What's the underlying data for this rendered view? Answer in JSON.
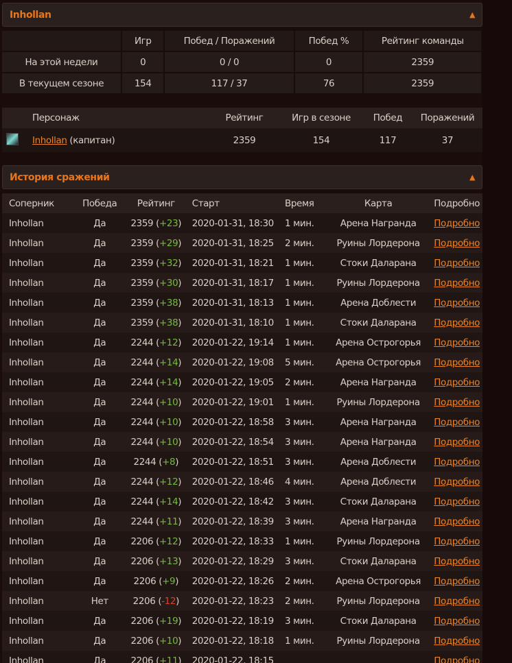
{
  "team": {
    "title": "Inhollan",
    "collapse_icon": "chevron-up-icon"
  },
  "stats": {
    "headers": [
      "",
      "Игр",
      "Побед / Поражений",
      "Побед %",
      "Рейтинг команды"
    ],
    "rows": [
      [
        "На этой недели",
        "0",
        "0 / 0",
        "0",
        "2359"
      ],
      [
        "В текущем сезоне",
        "154",
        "117 / 37",
        "76",
        "2359"
      ]
    ]
  },
  "roster": {
    "headers": [
      "Персонаж",
      "Рейтинг",
      "Игр в сезоне",
      "Побед",
      "Поражений"
    ],
    "rows": [
      {
        "icon": "class-icon",
        "name": "Inhollan",
        "role": "(капитан)",
        "rating": "2359",
        "games": "154",
        "wins": "117",
        "losses": "37"
      }
    ]
  },
  "history": {
    "title": "История сражений",
    "collapse_icon": "chevron-up-icon",
    "headers": [
      "Соперник",
      "Победа",
      "Рейтинг",
      "Старт",
      "Время",
      "Карта",
      "Подробно"
    ],
    "colors": {
      "positive": "#6fbf3a",
      "negative": "#d9432b",
      "link": "#e8832a",
      "accent": "#e8751a"
    },
    "rows": [
      [
        "Inhollan",
        "Да",
        "2359",
        "+23",
        "2020-01-31, 18:30",
        "1 мин.",
        "Арена Награнда",
        "Подробно"
      ],
      [
        "Inhollan",
        "Да",
        "2359",
        "+29",
        "2020-01-31, 18:25",
        "2 мин.",
        "Руины Лордерона",
        "Подробно"
      ],
      [
        "Inhollan",
        "Да",
        "2359",
        "+32",
        "2020-01-31, 18:21",
        "1 мин.",
        "Стоки Даларана",
        "Подробно"
      ],
      [
        "Inhollan",
        "Да",
        "2359",
        "+30",
        "2020-01-31, 18:17",
        "1 мин.",
        "Руины Лордерона",
        "Подробно"
      ],
      [
        "Inhollan",
        "Да",
        "2359",
        "+38",
        "2020-01-31, 18:13",
        "1 мин.",
        "Арена Доблести",
        "Подробно"
      ],
      [
        "Inhollan",
        "Да",
        "2359",
        "+38",
        "2020-01-31, 18:10",
        "1 мин.",
        "Стоки Даларана",
        "Подробно"
      ],
      [
        "Inhollan",
        "Да",
        "2244",
        "+12",
        "2020-01-22, 19:14",
        "1 мин.",
        "Арена Острогорья",
        "Подробно"
      ],
      [
        "Inhollan",
        "Да",
        "2244",
        "+14",
        "2020-01-22, 19:08",
        "5 мин.",
        "Арена Острогорья",
        "Подробно"
      ],
      [
        "Inhollan",
        "Да",
        "2244",
        "+14",
        "2020-01-22, 19:05",
        "2 мин.",
        "Арена Награнда",
        "Подробно"
      ],
      [
        "Inhollan",
        "Да",
        "2244",
        "+10",
        "2020-01-22, 19:01",
        "1 мин.",
        "Руины Лордерона",
        "Подробно"
      ],
      [
        "Inhollan",
        "Да",
        "2244",
        "+10",
        "2020-01-22, 18:58",
        "3 мин.",
        "Арена Награнда",
        "Подробно"
      ],
      [
        "Inhollan",
        "Да",
        "2244",
        "+10",
        "2020-01-22, 18:54",
        "3 мин.",
        "Арена Награнда",
        "Подробно"
      ],
      [
        "Inhollan",
        "Да",
        "2244",
        "+8",
        "2020-01-22, 18:51",
        "3 мин.",
        "Арена Доблести",
        "Подробно"
      ],
      [
        "Inhollan",
        "Да",
        "2244",
        "+12",
        "2020-01-22, 18:46",
        "4 мин.",
        "Арена Доблести",
        "Подробно"
      ],
      [
        "Inhollan",
        "Да",
        "2244",
        "+14",
        "2020-01-22, 18:42",
        "3 мин.",
        "Стоки Даларана",
        "Подробно"
      ],
      [
        "Inhollan",
        "Да",
        "2244",
        "+11",
        "2020-01-22, 18:39",
        "3 мин.",
        "Арена Награнда",
        "Подробно"
      ],
      [
        "Inhollan",
        "Да",
        "2206",
        "+12",
        "2020-01-22, 18:33",
        "1 мин.",
        "Руины Лордерона",
        "Подробно"
      ],
      [
        "Inhollan",
        "Да",
        "2206",
        "+13",
        "2020-01-22, 18:29",
        "3 мин.",
        "Стоки Даларана",
        "Подробно"
      ],
      [
        "Inhollan",
        "Да",
        "2206",
        "+9",
        "2020-01-22, 18:26",
        "2 мин.",
        "Арена Острогорья",
        "Подробно"
      ],
      [
        "Inhollan",
        "Нет",
        "2206",
        "-12",
        "2020-01-22, 18:23",
        "2 мин.",
        "Руины Лордерона",
        "Подробно"
      ],
      [
        "Inhollan",
        "Да",
        "2206",
        "+19",
        "2020-01-22, 18:19",
        "3 мин.",
        "Стоки Даларана",
        "Подробно"
      ],
      [
        "Inhollan",
        "Да",
        "2206",
        "+10",
        "2020-01-22, 18:18",
        "1 мин.",
        "Руины Лордерона",
        "Подробно"
      ],
      [
        "Inhollan",
        "Да",
        "2206",
        "+11",
        "2020-01-22, 18:15",
        "",
        "",
        "Подробно"
      ]
    ]
  }
}
